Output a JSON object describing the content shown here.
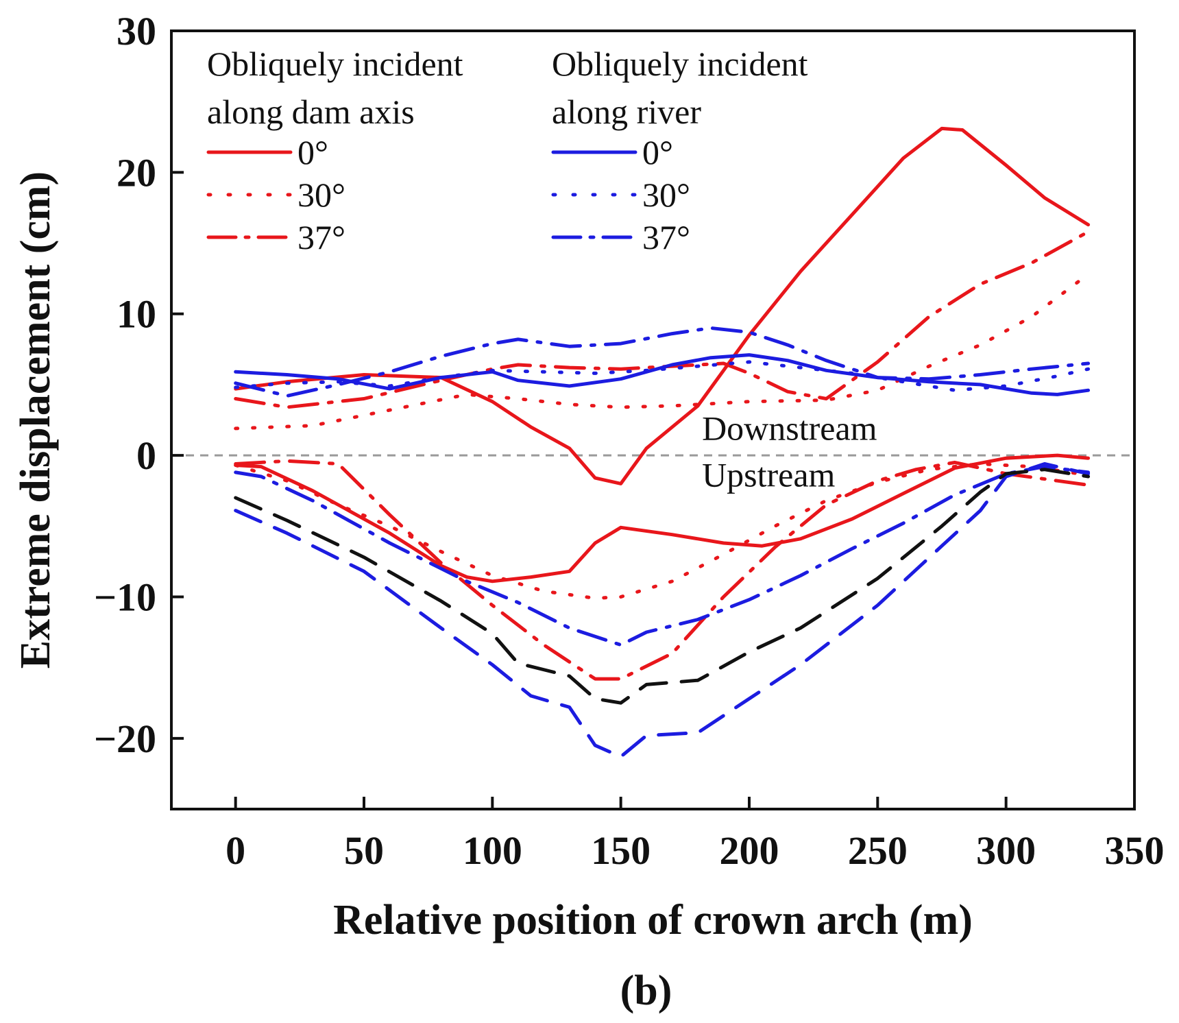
{
  "chart_data": {
    "type": "line",
    "panel_label": "(b)",
    "xlabel": "Relative position of crown arch (m)",
    "ylabel": "Extreme displacement (cm)",
    "xlim": [
      -25,
      350
    ],
    "ylim": [
      -25,
      30
    ],
    "xticks": [
      0,
      50,
      100,
      150,
      200,
      250,
      300,
      350
    ],
    "yticks": [
      -20,
      -10,
      0,
      10,
      20,
      30
    ],
    "ytick_labels": [
      "−20",
      "−10",
      "0",
      "10",
      "20",
      "30"
    ],
    "grid": false,
    "reference_line": {
      "y": 0,
      "color": "#999999",
      "style": "dashed"
    },
    "annotations": [
      {
        "text": "Downstream",
        "x": 180,
        "y": 1.3
      },
      {
        "text": "Upstream",
        "x": 180,
        "y": -2.0
      }
    ],
    "legend": {
      "placement": "top-left",
      "groups": [
        {
          "title_line1": "Obliquely incident",
          "title_line2": "along dam axis",
          "color": "#e8161b",
          "entries": [
            {
              "label": "0°",
              "style": "solid"
            },
            {
              "label": "30°",
              "style": "dotted"
            },
            {
              "label": "37°",
              "style": "dashdot"
            }
          ]
        },
        {
          "title_line1": "Obliquely incident",
          "title_line2": "along river",
          "color": "#1c1ce0",
          "entries": [
            {
              "label": "0°",
              "style": "solid"
            },
            {
              "label": "30°",
              "style": "dotted"
            },
            {
              "label": "37°",
              "style": "dashdot"
            }
          ]
        }
      ]
    },
    "series": [
      {
        "color": "#e8161b",
        "style": "solid",
        "part": "downstream",
        "x": [
          0,
          20,
          50,
          80,
          100,
          115,
          130,
          140,
          150,
          160,
          180,
          200,
          220,
          240,
          260,
          275,
          283,
          300,
          315,
          332
        ],
        "y": [
          4.7,
          5.2,
          5.7,
          5.5,
          3.8,
          2.0,
          0.5,
          -1.6,
          -2.0,
          0.5,
          3.5,
          8.5,
          13.0,
          17.0,
          21.0,
          23.1,
          23.0,
          20.5,
          18.2,
          16.3
        ]
      },
      {
        "color": "#e8161b",
        "style": "solid",
        "part": "upstream",
        "x": [
          0,
          10,
          30,
          60,
          80,
          90,
          100,
          115,
          130,
          140,
          150,
          170,
          190,
          205,
          220,
          240,
          260,
          280,
          300,
          320,
          332
        ],
        "y": [
          -0.7,
          -0.8,
          -2.5,
          -5.5,
          -7.8,
          -8.6,
          -8.9,
          -8.6,
          -8.2,
          -6.2,
          -5.1,
          -5.6,
          -6.2,
          -6.4,
          -5.9,
          -4.5,
          -2.7,
          -0.9,
          -0.2,
          0.0,
          -0.2
        ]
      },
      {
        "color": "#e8161b",
        "style": "dotted",
        "part": "downstream",
        "x": [
          0,
          30,
          60,
          90,
          110,
          130,
          150,
          170,
          200,
          230,
          250,
          270,
          290,
          310,
          332
        ],
        "y": [
          1.9,
          2.1,
          3.2,
          4.3,
          4.0,
          3.6,
          3.4,
          3.5,
          3.8,
          3.9,
          4.6,
          6.3,
          7.8,
          9.8,
          12.8
        ]
      },
      {
        "color": "#e8161b",
        "style": "dotted",
        "part": "upstream",
        "x": [
          0,
          20,
          40,
          60,
          80,
          100,
          120,
          140,
          150,
          170,
          190,
          210,
          230,
          250,
          270,
          290,
          310,
          332
        ],
        "y": [
          -0.7,
          -1.8,
          -3.5,
          -5.0,
          -6.8,
          -8.5,
          -9.6,
          -10.1,
          -10.0,
          -8.9,
          -7.0,
          -5.0,
          -3.2,
          -1.9,
          -1.0,
          -0.6,
          -0.8,
          -1.4
        ]
      },
      {
        "color": "#e8161b",
        "style": "dashdot",
        "part": "downstream",
        "x": [
          0,
          20,
          50,
          80,
          100,
          110,
          130,
          150,
          170,
          190,
          200,
          215,
          230,
          250,
          270,
          290,
          310,
          332
        ],
        "y": [
          4.0,
          3.4,
          4.0,
          5.3,
          6.1,
          6.4,
          6.2,
          6.1,
          6.3,
          6.5,
          5.8,
          4.5,
          4.0,
          6.6,
          9.8,
          12.1,
          13.6,
          15.8
        ]
      },
      {
        "color": "#e8161b",
        "style": "dashdot",
        "part": "upstream",
        "x": [
          0,
          20,
          40,
          60,
          80,
          100,
          120,
          140,
          150,
          170,
          190,
          210,
          230,
          250,
          265,
          280,
          300,
          320,
          332
        ],
        "y": [
          -0.6,
          -0.4,
          -0.6,
          -4.2,
          -7.6,
          -10.6,
          -13.4,
          -15.8,
          -15.8,
          -14.0,
          -10.0,
          -6.5,
          -3.5,
          -1.8,
          -1.0,
          -0.5,
          -1.3,
          -1.8,
          -2.1
        ]
      },
      {
        "color": "#1c1ce0",
        "style": "solid",
        "part": "downstream",
        "x": [
          0,
          20,
          40,
          60,
          80,
          100,
          110,
          130,
          150,
          170,
          185,
          200,
          215,
          230,
          250,
          270,
          290,
          310,
          320,
          332
        ],
        "y": [
          5.9,
          5.7,
          5.4,
          4.7,
          5.5,
          5.9,
          5.3,
          4.9,
          5.4,
          6.4,
          6.9,
          7.1,
          6.7,
          6.0,
          5.5,
          5.2,
          5.0,
          4.4,
          4.3,
          4.6
        ]
      },
      {
        "color": "#1c1ce0",
        "style": "dotted",
        "part": "downstream",
        "x": [
          0,
          20,
          40,
          60,
          80,
          100,
          120,
          140,
          160,
          180,
          200,
          220,
          240,
          260,
          280,
          300,
          320,
          332
        ],
        "y": [
          4.8,
          5.1,
          5.2,
          4.9,
          5.5,
          6.0,
          5.9,
          5.8,
          6.0,
          6.3,
          6.6,
          6.2,
          5.8,
          5.2,
          4.6,
          4.9,
          5.6,
          6.1
        ]
      },
      {
        "color": "#1c1ce0",
        "style": "dashdot",
        "part": "downstream",
        "x": [
          0,
          20,
          40,
          60,
          80,
          100,
          110,
          130,
          150,
          170,
          185,
          200,
          215,
          230,
          250,
          270,
          290,
          310,
          332
        ],
        "y": [
          5.1,
          4.2,
          5.0,
          5.9,
          7.0,
          7.9,
          8.2,
          7.7,
          7.9,
          8.6,
          9.0,
          8.7,
          7.8,
          6.7,
          5.5,
          5.4,
          5.7,
          6.1,
          6.5
        ]
      },
      {
        "color": "#1c1ce0",
        "style": "dashdot",
        "part": "upstream",
        "x": [
          0,
          10,
          30,
          60,
          90,
          110,
          130,
          150,
          160,
          180,
          200,
          220,
          240,
          260,
          280,
          300,
          315,
          332
        ],
        "y": [
          -1.2,
          -1.5,
          -3.2,
          -6.2,
          -8.9,
          -10.4,
          -12.2,
          -13.4,
          -12.5,
          -11.6,
          -10.2,
          -8.5,
          -6.6,
          -4.8,
          -2.8,
          -1.3,
          -0.8,
          -1.2
        ]
      },
      {
        "color": "#1c1ce0",
        "style": "dashed",
        "part": "upstream",
        "x": [
          0,
          20,
          50,
          80,
          100,
          115,
          130,
          140,
          150,
          160,
          180,
          200,
          220,
          250,
          275,
          290,
          300,
          315,
          332
        ],
        "y": [
          -3.9,
          -5.5,
          -8.2,
          -12.2,
          -14.8,
          -17.0,
          -17.8,
          -20.5,
          -21.3,
          -19.8,
          -19.6,
          -17.2,
          -14.8,
          -10.6,
          -6.4,
          -3.9,
          -1.5,
          -0.6,
          -1.3
        ]
      },
      {
        "color": "#111111",
        "style": "dashed",
        "part": "upstream",
        "x": [
          0,
          20,
          50,
          80,
          100,
          110,
          130,
          140,
          150,
          160,
          180,
          200,
          220,
          250,
          275,
          290,
          300,
          315,
          332
        ],
        "y": [
          -3.0,
          -4.6,
          -7.2,
          -10.3,
          -12.6,
          -14.7,
          -15.6,
          -17.2,
          -17.5,
          -16.2,
          -15.9,
          -13.9,
          -12.2,
          -8.7,
          -5.0,
          -2.6,
          -1.3,
          -1.0,
          -1.5
        ]
      }
    ]
  }
}
